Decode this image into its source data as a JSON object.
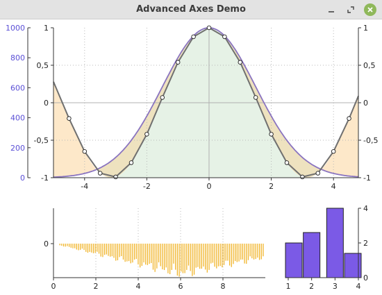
{
  "window": {
    "title": "Advanced Axes Demo"
  },
  "colors": {
    "left_axis": "#5a4fd6",
    "envelope": "#8a74c0",
    "curve": "#707070",
    "fill_green": "#e6f2e6",
    "fill_khaki": "#eee2bf",
    "fill_orange": "#fde8c9",
    "impulse": "#f1b52b",
    "bar_fill": "#7b5ae6",
    "close_button": "#8fb85a"
  },
  "chart_data": [
    {
      "type": "line",
      "xlim": [
        -5,
        4.8
      ],
      "ylim": [
        -1,
        1
      ],
      "xticks": [
        "-4",
        "-2",
        "0",
        "2",
        "4"
      ],
      "yticks_center": [
        "1",
        "0,5",
        "0",
        "-0,5",
        "-1"
      ],
      "yticks_right": [
        "1",
        "0,5",
        "0",
        "-0,5",
        "-1"
      ],
      "left_axis": {
        "ylim": [
          0,
          1000
        ],
        "ticks": [
          "1000",
          "800",
          "600",
          "400",
          "200",
          "0"
        ]
      },
      "grid": true,
      "series": [
        {
          "values": [
            {
              "x": -5,
              "y": 0.28
            },
            {
              "x": -4.5,
              "y": -0.21
            },
            {
              "x": -4,
              "y": -0.65
            },
            {
              "x": -3.5,
              "y": -0.94
            },
            {
              "x": -3,
              "y": -0.99
            },
            {
              "x": -2.5,
              "y": -0.8
            },
            {
              "x": -2,
              "y": -0.42
            },
            {
              "x": -1.5,
              "y": 0.07
            },
            {
              "x": -1,
              "y": 0.54
            },
            {
              "x": -0.5,
              "y": 0.88
            },
            {
              "x": 0,
              "y": 1.0
            },
            {
              "x": 0.5,
              "y": 0.88
            },
            {
              "x": 1,
              "y": 0.54
            },
            {
              "x": 1.5,
              "y": 0.07
            },
            {
              "x": 2,
              "y": -0.42
            },
            {
              "x": 2.5,
              "y": -0.8
            },
            {
              "x": 3,
              "y": -0.99
            },
            {
              "x": 3.5,
              "y": -0.94
            },
            {
              "x": 4,
              "y": -0.65
            },
            {
              "x": 4.5,
              "y": -0.21
            },
            {
              "x": 4.8,
              "y": 0.09
            }
          ]
        }
      ],
      "envelope": {
        "description_shape": "gaussian",
        "peak": 1.0,
        "floor": -1.0
      }
    },
    {
      "type": "bar",
      "style": "impulse",
      "xlim": [
        0,
        10
      ],
      "xticks": [
        "0",
        "2",
        "4",
        "6",
        "8"
      ],
      "yticks": [
        "0"
      ],
      "x_start": 0.3,
      "x_end": 9.9,
      "count": 110,
      "min_value": -0.05,
      "max_depth": -1.0,
      "depth_at_end": -0.45
    },
    {
      "type": "bar",
      "categories": [
        "1",
        "2",
        "3",
        "4"
      ],
      "values": [
        2,
        2.6,
        4,
        1.4
      ],
      "ylim": [
        0,
        4
      ],
      "yticks": [
        "0",
        "2",
        "4"
      ]
    }
  ]
}
